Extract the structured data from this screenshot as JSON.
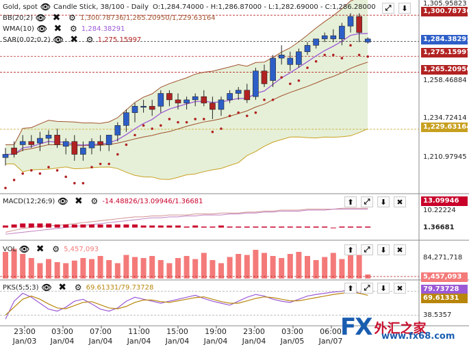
{
  "header": {
    "symbol": "Gold, spot",
    "chart_type": "Candle Stick, 38/100 - Daily",
    "ohlc": "O:1,284.74000 - H:1,286.87000 - L:1,282.69000 - C:1,286.28000",
    "bb_label": "BB(20;2)",
    "bb_values": "1,300.78736/1,265.20950/1,229.63164",
    "wma_label": "WMA(10)",
    "wma_value": "1,284.38291",
    "sar_label": "SAR(0.02;0.2)",
    "sar_value": "1,275.15997"
  },
  "price_axis": {
    "ticks": [
      "1,305.95823",
      "1,258.46884",
      "1,234.72414",
      "1,210.97945"
    ],
    "tags": {
      "bb_upper": "1,300.78736",
      "wma": "1,284.38291",
      "sar": "1,275.15997",
      "bb_mid": "1,265.20950",
      "bb_lower": "1,229.63164"
    }
  },
  "macd": {
    "label": "MACD(12;26;9)",
    "values": "-14.48826/13.09946/1.36681",
    "tag_line": "13.09946",
    "tag_hist": "1.36681",
    "axis_tick": "10.22224"
  },
  "vol": {
    "label": "VOL",
    "value": "5,457,093",
    "axis_tick": "84,271,718",
    "tag": "5,457,093"
  },
  "pks": {
    "label": "PKS(5;5;3)",
    "values": "69.61331/79.73728",
    "tag_k": "79.73728",
    "tag_d": "69.61331",
    "axis_tick": "38.5357"
  },
  "x_axis": [
    {
      "time": "23:00",
      "date": "Jan/03"
    },
    {
      "time": "03:00",
      "date": "Jan/04"
    },
    {
      "time": "07:00",
      "date": "Jan/04"
    },
    {
      "time": "11:00",
      "date": "Jan/04"
    },
    {
      "time": "15:00",
      "date": "Jan/04"
    },
    {
      "time": "19:00",
      "date": "Jan/04"
    },
    {
      "time": "23:00",
      "date": "Jan/04"
    },
    {
      "time": "03:00",
      "date": "Jan/05"
    },
    {
      "time": "06:00",
      "date": "Jan/07"
    }
  ],
  "controls": {
    "up": "⬆",
    "resize": "⤢",
    "down": "⬇",
    "close": "✖",
    "eye": "👁",
    "gear": "⚙"
  },
  "watermark": {
    "fx": "FX",
    "cn": "外汇之家",
    "url": "www.fx68.com"
  },
  "colors": {
    "bull": "#2d5ec8",
    "bear": "#b22222",
    "bb": "#a0522d",
    "wma": "#9b59d6",
    "sar": "#b22222",
    "bb_fill": "#e6f0d8",
    "vol": "#f47a7a",
    "macd_hist": "#c8002a"
  },
  "candles": [
    [
      1212,
      1218,
      1207,
      1214
    ],
    [
      1218,
      1222,
      1212,
      1214
    ],
    [
      1220,
      1226,
      1216,
      1222
    ],
    [
      1222,
      1226,
      1218,
      1220
    ],
    [
      1221,
      1228,
      1216,
      1224
    ],
    [
      1224,
      1229,
      1220,
      1226
    ],
    [
      1226,
      1230,
      1218,
      1220
    ],
    [
      1219,
      1224,
      1214,
      1222
    ],
    [
      1222,
      1226,
      1210,
      1214
    ],
    [
      1214,
      1222,
      1210,
      1218
    ],
    [
      1218,
      1224,
      1214,
      1222
    ],
    [
      1222,
      1226,
      1216,
      1220
    ],
    [
      1220,
      1226,
      1216,
      1226
    ],
    [
      1226,
      1234,
      1222,
      1232
    ],
    [
      1232,
      1242,
      1228,
      1240
    ],
    [
      1240,
      1246,
      1234,
      1244
    ],
    [
      1244,
      1248,
      1240,
      1244
    ],
    [
      1244,
      1248,
      1238,
      1242
    ],
    [
      1244,
      1254,
      1240,
      1252
    ],
    [
      1252,
      1254,
      1244,
      1248
    ],
    [
      1248,
      1252,
      1242,
      1246
    ],
    [
      1246,
      1250,
      1242,
      1248
    ],
    [
      1248,
      1252,
      1244,
      1250
    ],
    [
      1250,
      1254,
      1244,
      1246
    ],
    [
      1246,
      1250,
      1236,
      1242
    ],
    [
      1242,
      1250,
      1238,
      1248
    ],
    [
      1248,
      1254,
      1246,
      1252
    ],
    [
      1252,
      1256,
      1248,
      1254
    ],
    [
      1254,
      1258,
      1246,
      1248
    ],
    [
      1250,
      1268,
      1248,
      1266
    ],
    [
      1266,
      1270,
      1256,
      1258
    ],
    [
      1260,
      1276,
      1256,
      1274
    ],
    [
      1274,
      1282,
      1270,
      1276
    ],
    [
      1270,
      1278,
      1266,
      1274
    ],
    [
      1270,
      1280,
      1268,
      1278
    ],
    [
      1278,
      1284,
      1276,
      1282
    ],
    [
      1282,
      1286,
      1280,
      1286
    ],
    [
      1286,
      1290,
      1284,
      1288
    ],
    [
      1286,
      1292,
      1284,
      1288
    ],
    [
      1286,
      1296,
      1282,
      1294
    ],
    [
      1294,
      1302,
      1290,
      1300
    ],
    [
      1300,
      1302,
      1284,
      1290
    ],
    [
      1284,
      1287,
      1283,
      1286
    ]
  ],
  "volumes": [
    52,
    58,
    48,
    40,
    30,
    38,
    32,
    30,
    35,
    40,
    38,
    44,
    36,
    30,
    46,
    42,
    40,
    44,
    36,
    30,
    40,
    44,
    38,
    50,
    36,
    30,
    42,
    48,
    46,
    56,
    50,
    44,
    40,
    48,
    52,
    44,
    36,
    42,
    50,
    38,
    48,
    46,
    8
  ],
  "pks_k": [
    10,
    55,
    75,
    65,
    50,
    35,
    30,
    40,
    55,
    60,
    48,
    35,
    30,
    38,
    55,
    65,
    60,
    55,
    50,
    55,
    60,
    65,
    70,
    62,
    55,
    50,
    45,
    55,
    65,
    72,
    68,
    60,
    55,
    52,
    60,
    68,
    72,
    75,
    78,
    80,
    85,
    75,
    80
  ],
  "pks_d": [
    20,
    40,
    60,
    68,
    60,
    48,
    38,
    36,
    44,
    52,
    54,
    46,
    38,
    36,
    42,
    52,
    58,
    58,
    54,
    52,
    56,
    60,
    64,
    66,
    60,
    54,
    50,
    50,
    56,
    62,
    66,
    64,
    60,
    56,
    56,
    60,
    64,
    68,
    72,
    75,
    78,
    75,
    70
  ],
  "macd_line": [
    -12,
    -10,
    -8,
    -7,
    -6,
    -5,
    -5,
    -4,
    -3,
    -2,
    -1,
    0,
    1,
    2,
    3,
    4,
    4,
    5,
    5,
    6,
    6,
    6,
    7,
    7,
    7,
    8,
    8,
    8,
    9,
    9,
    10,
    10,
    11,
    11,
    11,
    12,
    12,
    12,
    12,
    13,
    13,
    13,
    13
  ],
  "macd_signal": [
    -14,
    -13,
    -12,
    -11,
    -10,
    -9,
    -8,
    -7,
    -6,
    -5,
    -4,
    -3,
    -2,
    -1,
    0,
    1,
    2,
    3,
    3,
    4,
    4,
    5,
    5,
    6,
    6,
    6,
    7,
    7,
    8,
    8,
    9,
    9,
    10,
    10,
    10,
    11,
    11,
    11,
    12,
    12,
    12,
    12,
    12
  ]
}
